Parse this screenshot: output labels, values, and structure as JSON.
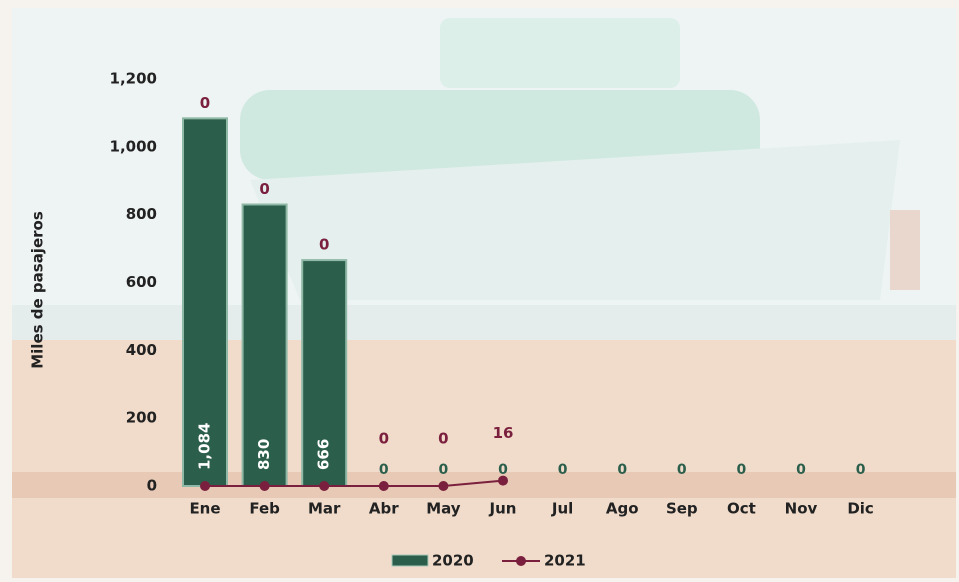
{
  "chart_data": {
    "type": "bar",
    "y_axis_label": "Miles de pasajeros",
    "categories": [
      "Ene",
      "Feb",
      "Mar",
      "Abr",
      "May",
      "Jun",
      "Jul",
      "Ago",
      "Sep",
      "Oct",
      "Nov",
      "Dic"
    ],
    "series": [
      {
        "name": "2020",
        "type": "bar",
        "color": "#2c5f4b",
        "values": [
          1084,
          830,
          666,
          0,
          0,
          0,
          0,
          0,
          0,
          0,
          0,
          0
        ],
        "value_labels": [
          "1,084",
          "830",
          "666",
          "0",
          "0",
          "0",
          "0",
          "0",
          "0",
          "0",
          "0",
          "0"
        ]
      },
      {
        "name": "2021",
        "type": "line",
        "color": "#7a1f3d",
        "values": [
          0,
          0,
          0,
          0,
          0,
          16,
          null,
          null,
          null,
          null,
          null,
          null
        ]
      }
    ],
    "ylim": [
      0,
      1200
    ],
    "yticks": [
      0,
      200,
      400,
      600,
      800,
      {
        "value": 1000,
        "label": "1,000"
      },
      {
        "value": 1200,
        "label": "1,200"
      }
    ]
  }
}
